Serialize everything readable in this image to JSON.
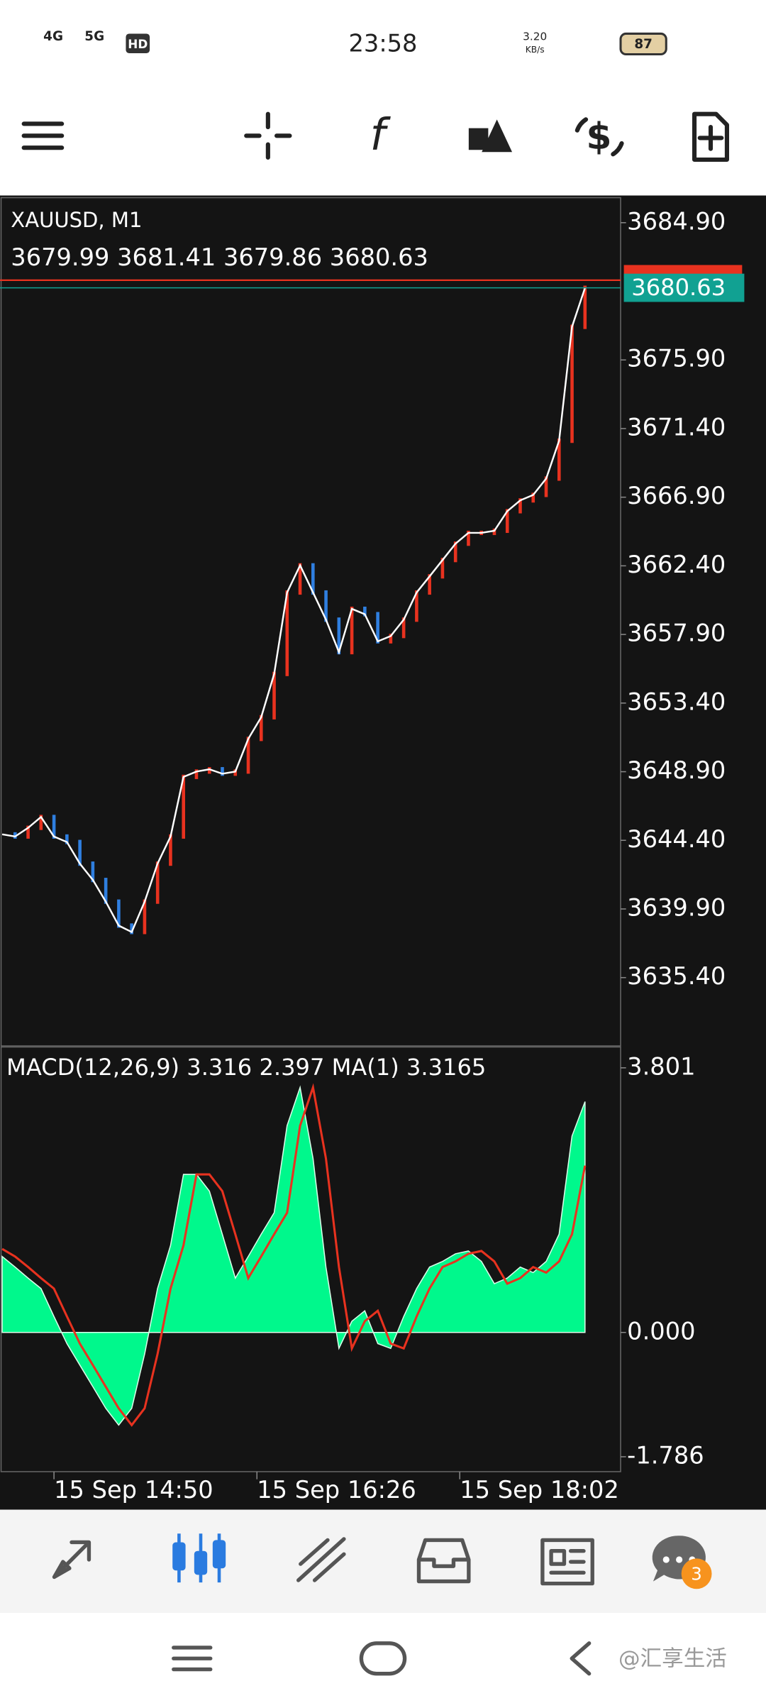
{
  "status_bar": {
    "network_1": "4G",
    "network_2": "5G",
    "hd": "HD",
    "time": "23:58",
    "speed": "3.20",
    "speed_unit": "KB/s",
    "battery": "87"
  },
  "toolbar": {
    "indicators_icon": "f"
  },
  "chart_data": [
    {
      "type": "line",
      "title": "XAUUSD, M1",
      "subtitle": "3679.99 3681.41 3679.86 3680.63",
      "series": [
        {
          "color": "#ffffff",
          "values": [
            3644.79,
            3644.65,
            3645.22,
            3645.93,
            3644.65,
            3644.29,
            3642.87,
            3641.8,
            3640.38,
            3638.81,
            3638.39,
            3640.38,
            3642.87,
            3644.65,
            3648.56,
            3648.91,
            3649.06,
            3648.77,
            3648.91,
            3651.05,
            3652.47,
            3655.31,
            3660.65,
            3662.43,
            3660.65,
            3658.87,
            3656.74,
            3659.58,
            3659.23,
            3657.45,
            3657.8,
            3658.87,
            3660.65,
            3661.71,
            3662.78,
            3663.85,
            3664.56,
            3664.56,
            3664.7,
            3665.98,
            3666.69,
            3667.05,
            3668.12,
            3670.6,
            3678.07,
            3680.63
          ]
        }
      ],
      "up_color": "#e8321f",
      "down_color": "#2f7fe0",
      "last_price_color": "#11a192",
      "xlim": [
        0,
        47.75
      ],
      "ylim": [
        3630.92,
        3686.54
      ],
      "yticks": [
        {
          "value": 3684.9,
          "label": "3684.90"
        },
        {
          "value": 3675.9,
          "label": "3675.90"
        },
        {
          "value": 3671.4,
          "label": "3671.40"
        },
        {
          "value": 3666.9,
          "label": "3666.90"
        },
        {
          "value": 3662.4,
          "label": "3662.40"
        },
        {
          "value": 3657.9,
          "label": "3657.90"
        },
        {
          "value": 3653.4,
          "label": "3653.40"
        },
        {
          "value": 3648.9,
          "label": "3648.90"
        },
        {
          "value": 3644.4,
          "label": "3644.40"
        },
        {
          "value": 3639.9,
          "label": "3639.90"
        },
        {
          "value": 3635.4,
          "label": "3635.40"
        }
      ]
    },
    {
      "type": "area",
      "title": "MACD(12,26,9) 3.316 2.397 MA(1) 3.3165",
      "series": [
        {
          "color": "#00f88c",
          "values": [
            1.09,
            0.94,
            0.78,
            0.63,
            0.23,
            -0.16,
            -0.47,
            -0.78,
            -1.09,
            -1.33,
            -1.09,
            -0.31,
            0.63,
            1.25,
            2.27,
            2.27,
            2.03,
            1.41,
            0.78,
            1.09,
            1.41,
            1.72,
            2.97,
            3.52,
            2.5,
            0.94,
            -0.23,
            0.16,
            0.31,
            -0.16,
            -0.23,
            0.23,
            0.63,
            0.94,
            1.02,
            1.13,
            1.17,
            1.02,
            0.7,
            0.78,
            0.94,
            0.86,
            1.02,
            1.41,
            2.82,
            3.316
          ]
        },
        {
          "type": "line",
          "color": "#e8321f",
          "values": [
            1.2,
            1.09,
            0.94,
            0.78,
            0.63,
            0.23,
            -0.16,
            -0.47,
            -0.78,
            -1.09,
            -1.33,
            -1.09,
            -0.31,
            0.63,
            1.25,
            2.27,
            2.27,
            2.03,
            1.41,
            0.78,
            1.09,
            1.41,
            1.72,
            2.97,
            3.52,
            2.5,
            0.94,
            -0.23,
            0.16,
            0.31,
            -0.16,
            -0.23,
            0.23,
            0.63,
            0.94,
            1.02,
            1.13,
            1.17,
            1.02,
            0.7,
            0.78,
            0.94,
            0.86,
            1.02,
            1.41,
            2.397
          ]
        }
      ],
      "xlim": [
        0,
        47.75
      ],
      "ylim": [
        -2.0,
        4.1
      ],
      "yticks": [
        {
          "value": 3.801,
          "label": "3.801"
        },
        {
          "value": 0,
          "label": "0.000"
        },
        {
          "value": -1.786,
          "label": "-1.786"
        }
      ],
      "xticks": [
        {
          "value": 4,
          "label": "15 Sep 14:50"
        },
        {
          "value": 19.67,
          "label": "15 Sep 16:26"
        },
        {
          "value": 35.33,
          "label": "15 Sep 18:02"
        }
      ]
    }
  ],
  "bottom_nav": {
    "badge": "3"
  },
  "watermark": "@汇享生活"
}
